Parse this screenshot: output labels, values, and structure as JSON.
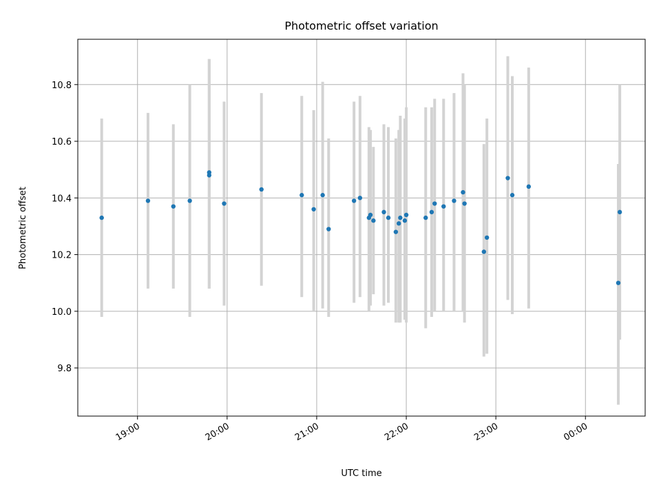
{
  "chart_data": {
    "type": "scatter",
    "title": "Photometric offset variation",
    "xlabel": "UTC time",
    "ylabel": "Photometric offset",
    "x_axis": "time",
    "xlim": [
      "18:20",
      "24:40"
    ],
    "ylim": [
      9.63,
      10.96
    ],
    "grid": true,
    "x_ticks": [
      {
        "t": "19:00",
        "label": "19:00"
      },
      {
        "t": "20:00",
        "label": "20:00"
      },
      {
        "t": "21:00",
        "label": "21:00"
      },
      {
        "t": "22:00",
        "label": "22:00"
      },
      {
        "t": "23:00",
        "label": "23:00"
      },
      {
        "t": "24:00",
        "label": "00:00"
      }
    ],
    "y_ticks": [
      9.8,
      10.0,
      10.2,
      10.4,
      10.6,
      10.8
    ],
    "colors": {
      "point": "#1f77b4",
      "error_bar": "#d3d3d3",
      "grid": "#b0b0b0"
    },
    "series": [
      {
        "points": [
          {
            "t": "18:36",
            "y": 10.33,
            "lo": 9.98,
            "hi": 10.68
          },
          {
            "t": "19:07",
            "y": 10.39,
            "lo": 10.08,
            "hi": 10.7
          },
          {
            "t": "19:24",
            "y": 10.37,
            "lo": 10.08,
            "hi": 10.66
          },
          {
            "t": "19:35",
            "y": 10.39,
            "lo": 9.98,
            "hi": 10.8
          },
          {
            "t": "19:48",
            "y": 10.49,
            "lo": 10.08,
            "hi": 10.89
          },
          {
            "t": "19:48",
            "y": 10.48,
            "lo": 10.08,
            "hi": 10.89
          },
          {
            "t": "19:58",
            "y": 10.38,
            "lo": 10.02,
            "hi": 10.74
          },
          {
            "t": "20:23",
            "y": 10.43,
            "lo": 10.09,
            "hi": 10.77
          },
          {
            "t": "20:50",
            "y": 10.41,
            "lo": 10.05,
            "hi": 10.76
          },
          {
            "t": "20:58",
            "y": 10.36,
            "lo": 10.0,
            "hi": 10.71
          },
          {
            "t": "21:04",
            "y": 10.41,
            "lo": 10.01,
            "hi": 10.81
          },
          {
            "t": "21:08",
            "y": 10.29,
            "lo": 9.98,
            "hi": 10.61
          },
          {
            "t": "21:25",
            "y": 10.39,
            "lo": 10.03,
            "hi": 10.74
          },
          {
            "t": "21:29",
            "y": 10.4,
            "lo": 10.05,
            "hi": 10.76
          },
          {
            "t": "21:35",
            "y": 10.33,
            "lo": 10.0,
            "hi": 10.65
          },
          {
            "t": "21:36",
            "y": 10.34,
            "lo": 10.02,
            "hi": 10.64
          },
          {
            "t": "21:38",
            "y": 10.32,
            "lo": 10.06,
            "hi": 10.58
          },
          {
            "t": "21:45",
            "y": 10.35,
            "lo": 10.02,
            "hi": 10.66
          },
          {
            "t": "21:48",
            "y": 10.33,
            "lo": 10.03,
            "hi": 10.65
          },
          {
            "t": "21:53",
            "y": 10.28,
            "lo": 9.96,
            "hi": 10.61
          },
          {
            "t": "21:55",
            "y": 10.31,
            "lo": 9.96,
            "hi": 10.64
          },
          {
            "t": "21:56",
            "y": 10.33,
            "lo": 9.96,
            "hi": 10.69
          },
          {
            "t": "21:59",
            "y": 10.32,
            "lo": 9.97,
            "hi": 10.68
          },
          {
            "t": "22:00",
            "y": 10.34,
            "lo": 9.96,
            "hi": 10.72
          },
          {
            "t": "22:13",
            "y": 10.33,
            "lo": 9.94,
            "hi": 10.72
          },
          {
            "t": "22:17",
            "y": 10.35,
            "lo": 9.98,
            "hi": 10.72
          },
          {
            "t": "22:19",
            "y": 10.38,
            "lo": 10.0,
            "hi": 10.75
          },
          {
            "t": "22:25",
            "y": 10.37,
            "lo": 10.0,
            "hi": 10.75
          },
          {
            "t": "22:32",
            "y": 10.39,
            "lo": 10.0,
            "hi": 10.77
          },
          {
            "t": "22:38",
            "y": 10.42,
            "lo": 10.0,
            "hi": 10.84
          },
          {
            "t": "22:39",
            "y": 10.38,
            "lo": 9.96,
            "hi": 10.8
          },
          {
            "t": "22:52",
            "y": 10.21,
            "lo": 9.84,
            "hi": 10.59
          },
          {
            "t": "22:54",
            "y": 10.26,
            "lo": 9.85,
            "hi": 10.68
          },
          {
            "t": "23:08",
            "y": 10.47,
            "lo": 10.04,
            "hi": 10.9
          },
          {
            "t": "23:11",
            "y": 10.41,
            "lo": 9.99,
            "hi": 10.83
          },
          {
            "t": "23:22",
            "y": 10.44,
            "lo": 10.01,
            "hi": 10.86
          },
          {
            "t": "24:22",
            "y": 10.1,
            "lo": 9.67,
            "hi": 10.52
          },
          {
            "t": "24:23",
            "y": 10.35,
            "lo": 9.9,
            "hi": 10.8
          }
        ]
      }
    ]
  }
}
